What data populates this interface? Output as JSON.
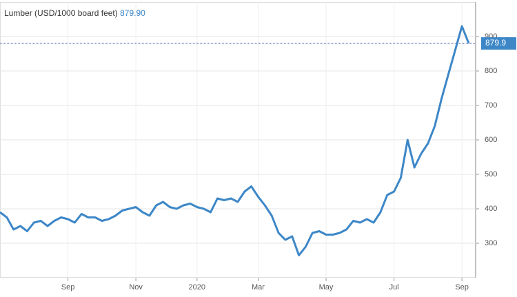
{
  "chart_data": {
    "type": "line",
    "title": "Lumber (USD/1000 board feet)",
    "last_price": {
      "value": 879.9,
      "label": "879.90"
    },
    "categories": [
      null,
      null,
      null,
      null,
      null,
      null,
      null,
      null,
      null,
      null,
      "Sep",
      null,
      null,
      null,
      null,
      null,
      null,
      null,
      null,
      null,
      "Nov",
      null,
      null,
      null,
      null,
      null,
      null,
      null,
      null,
      "2020",
      null,
      null,
      null,
      null,
      null,
      null,
      null,
      null,
      "Mar",
      null,
      null,
      null,
      null,
      null,
      null,
      null,
      null,
      null,
      "May",
      null,
      null,
      null,
      null,
      null,
      null,
      null,
      null,
      null,
      "Jul",
      null,
      null,
      null,
      null,
      null,
      null,
      null,
      null,
      null,
      "Sep",
      null
    ],
    "series": [
      {
        "name": "Lumber",
        "color": "#3d87c7",
        "values": [
          390,
          375,
          340,
          350,
          335,
          360,
          365,
          350,
          365,
          375,
          370,
          360,
          385,
          375,
          375,
          365,
          370,
          380,
          395,
          400,
          405,
          390,
          380,
          410,
          420,
          405,
          400,
          410,
          415,
          405,
          400,
          390,
          430,
          425,
          430,
          420,
          450,
          465,
          435,
          410,
          380,
          330,
          310,
          320,
          265,
          290,
          330,
          335,
          325,
          325,
          330,
          340,
          365,
          360,
          370,
          360,
          390,
          440,
          450,
          490,
          600,
          520,
          560,
          590,
          640,
          720,
          790,
          860,
          930,
          880
        ]
      }
    ],
    "ylim": [
      200,
      1000
    ],
    "yticks": [
      300,
      400,
      500,
      600,
      700,
      800,
      900
    ],
    "grid": true
  }
}
